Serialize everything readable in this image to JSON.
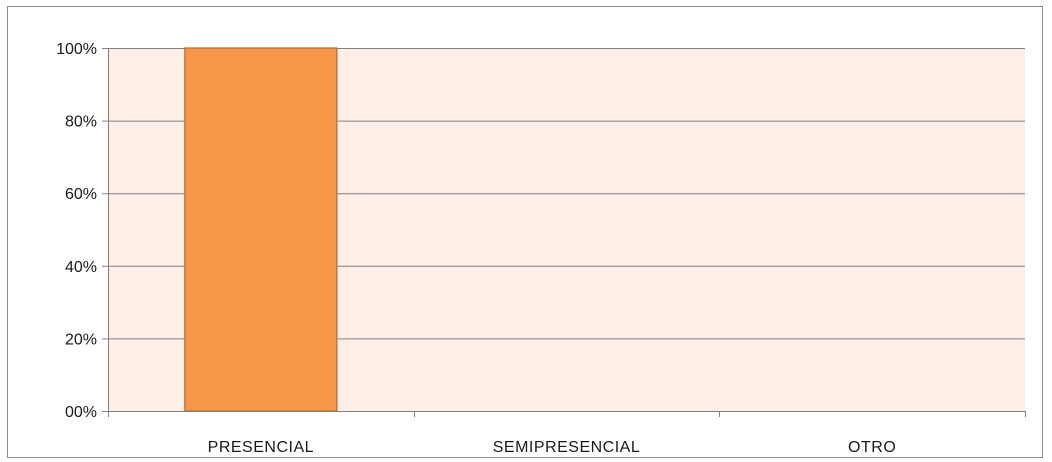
{
  "chart_data": {
    "type": "bar",
    "categories": [
      "PRESENCIAL",
      "SEMIPRESENCIAL",
      "OTRO"
    ],
    "values": [
      100,
      0,
      0
    ],
    "ylim": [
      0,
      100
    ],
    "yticks": [
      0,
      20,
      40,
      60,
      80,
      100
    ],
    "ytick_labels": [
      "00%",
      "20%",
      "40%",
      "60%",
      "80%",
      "100%"
    ],
    "title": "",
    "xlabel": "",
    "ylabel": "",
    "grid": true,
    "colors": {
      "bar": "#F79646",
      "bar_border": "#B46A2E",
      "plot_background": "#FDEEE7",
      "gridline": "#7f7f7f",
      "axis": "#7f7f7f"
    }
  }
}
